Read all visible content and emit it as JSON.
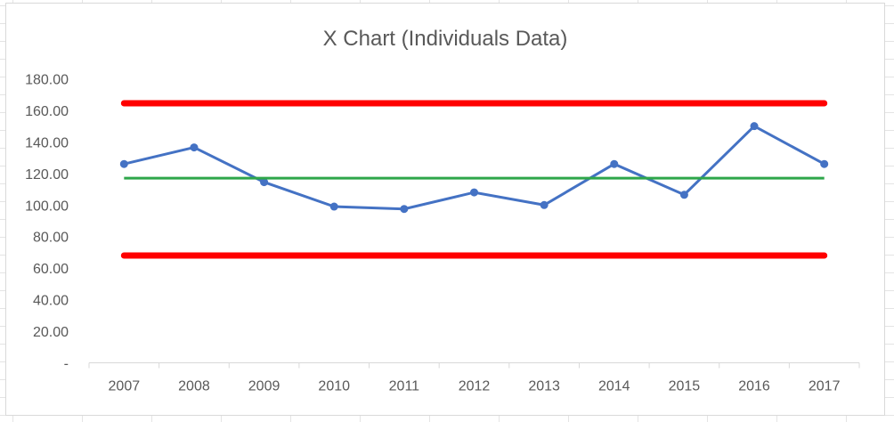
{
  "chart_data": {
    "type": "line",
    "title": "X Chart (Individuals Data)",
    "xlabel": "",
    "ylabel": "",
    "categories": [
      "2007",
      "2008",
      "2009",
      "2010",
      "2011",
      "2012",
      "2013",
      "2014",
      "2015",
      "2016",
      "2017"
    ],
    "series": [
      {
        "values": [
          126,
          136.5,
          114.5,
          99,
          97.5,
          108,
          100,
          126,
          106.5,
          150,
          126
        ],
        "color": "#4472C4",
        "style": "line-markers"
      },
      {
        "values": [
          164.5,
          164.5,
          164.5,
          164.5,
          164.5,
          164.5,
          164.5,
          164.5,
          164.5,
          164.5,
          164.5
        ],
        "color": "#FF0000",
        "style": "thick-line"
      },
      {
        "values": [
          117,
          117,
          117,
          117,
          117,
          117,
          117,
          117,
          117,
          117,
          117
        ],
        "color": "#2EA64A",
        "style": "line"
      },
      {
        "values": [
          68,
          68,
          68,
          68,
          68,
          68,
          68,
          68,
          68,
          68,
          68
        ],
        "color": "#FF0000",
        "style": "thick-line"
      }
    ],
    "ylim": [
      0,
      180
    ],
    "yticks": [
      0,
      20,
      40,
      60,
      80,
      100,
      120,
      140,
      160,
      180
    ],
    "ytick_labels": [
      "-",
      "20.00",
      "40.00",
      "60.00",
      "80.00",
      "100.00",
      "120.00",
      "140.00",
      "160.00",
      "180.00"
    ],
    "grid": false,
    "legend": "none"
  }
}
